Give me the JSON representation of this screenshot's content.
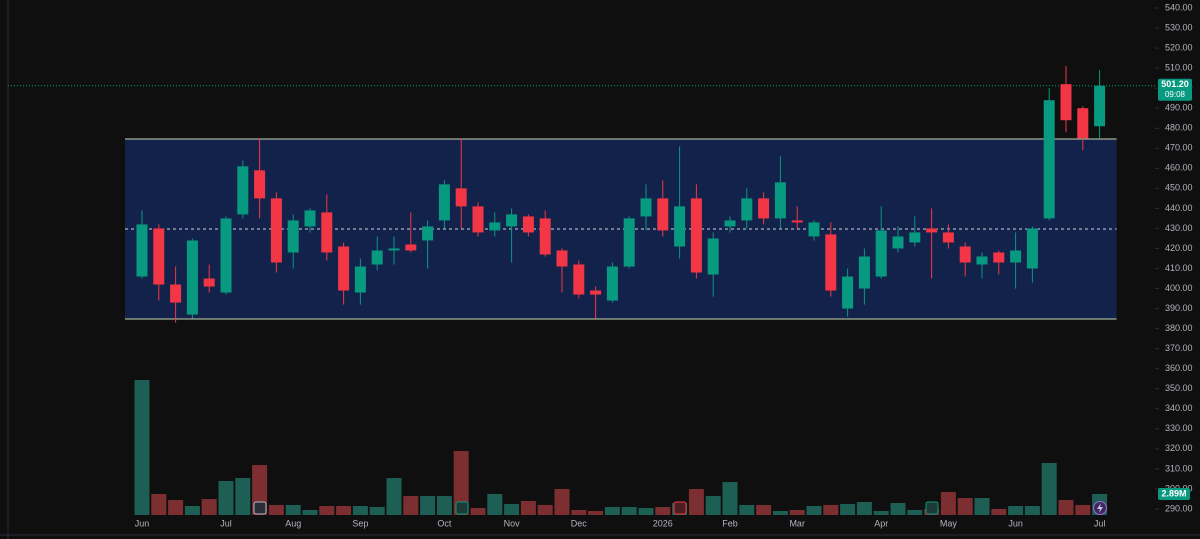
{
  "chart_data": {
    "type": "candlestick",
    "categories": [
      "Jun",
      null,
      null,
      null,
      null,
      "Jul",
      null,
      null,
      null,
      "Aug",
      null,
      null,
      null,
      "Sep",
      null,
      null,
      null,
      null,
      "Oct",
      null,
      null,
      null,
      "Nov",
      null,
      null,
      null,
      "Dec",
      null,
      null,
      null,
      null,
      "2026",
      null,
      null,
      null,
      "Feb",
      null,
      null,
      null,
      "Mar",
      null,
      null,
      null,
      null,
      "Apr",
      null,
      null,
      null,
      "May",
      null,
      null,
      null,
      "Jun",
      null,
      null,
      null,
      null,
      "Jul"
    ],
    "open": [
      406,
      430,
      402,
      387,
      405,
      398,
      437,
      459,
      445,
      418,
      431,
      438,
      421,
      398,
      412,
      419,
      422,
      424,
      434,
      450,
      441,
      429,
      431,
      436,
      435,
      419,
      412,
      399,
      394,
      411,
      436,
      445,
      421,
      445,
      407,
      431,
      434,
      445,
      435,
      434,
      426,
      427,
      390,
      400,
      406,
      420,
      423,
      430,
      428,
      421,
      412,
      418,
      413,
      410,
      435,
      502,
      490,
      481
    ],
    "high": [
      439,
      432,
      411,
      425,
      412,
      436,
      464,
      475,
      448,
      437,
      440,
      447,
      423,
      415,
      426,
      426,
      438,
      434,
      454,
      475,
      443,
      438,
      440,
      437,
      439,
      420,
      414,
      401,
      413,
      436,
      452,
      454,
      471,
      452,
      428,
      436,
      450,
      448,
      466,
      441,
      434,
      433,
      410,
      420,
      441,
      431,
      436,
      440,
      432,
      423,
      418,
      419,
      428,
      431,
      500,
      511,
      491,
      509
    ],
    "low": [
      405,
      394,
      383,
      385,
      398,
      397,
      435,
      435,
      408,
      410,
      428,
      414,
      392,
      392,
      409,
      412,
      418,
      410,
      430,
      430,
      426,
      426,
      413,
      426,
      416,
      398,
      395,
      385,
      393,
      410,
      429,
      426,
      415,
      405,
      396,
      428,
      430,
      432,
      430,
      430,
      424,
      396,
      386,
      392,
      405,
      418,
      421,
      405,
      420,
      406,
      405,
      407,
      400,
      403,
      434,
      478,
      469,
      475
    ],
    "close": [
      432,
      402,
      393,
      424,
      401,
      435,
      461,
      445,
      413,
      434,
      439,
      418,
      399,
      411,
      419,
      420,
      419,
      431,
      452,
      441,
      428,
      433,
      437,
      428,
      417,
      411,
      397,
      397,
      411,
      435,
      445,
      429,
      441,
      408,
      425,
      434,
      445,
      435,
      453,
      433,
      433,
      399,
      406,
      416,
      429,
      426,
      428,
      428,
      423,
      413,
      416,
      413,
      419,
      430,
      494,
      484,
      475,
      501.2
    ],
    "volume": [
      18.58,
      2.89,
      2.06,
      1.24,
      2.2,
      4.68,
      5.09,
      6.88,
      1.38,
      1.38,
      0.69,
      1.24,
      1.24,
      1.24,
      1.1,
      5.09,
      2.61,
      2.61,
      2.61,
      8.81,
      0.96,
      2.89,
      1.51,
      1.93,
      1.38,
      3.58,
      0.69,
      0.55,
      1.1,
      1.1,
      0.96,
      1.1,
      1.65,
      3.58,
      2.61,
      4.54,
      1.38,
      1.38,
      0.55,
      0.69,
      1.24,
      1.38,
      1.51,
      1.79,
      0.55,
      1.65,
      0.69,
      0.83,
      3.16,
      2.34,
      2.34,
      0.83,
      1.24,
      1.24,
      7.16,
      2.06,
      1.38,
      2.89
    ],
    "volume_last_label": "2.89M",
    "up_color": "#089981",
    "down_color": "#f23645",
    "volume_up_color": "#1d5e55",
    "volume_down_color": "#7c2e31",
    "last_price": {
      "value": 501.2,
      "label": "501.20"
    },
    "countdown": "09:08",
    "box": {
      "top": 474.6,
      "bottom": 384.8,
      "color": "#13224a"
    },
    "events": [
      "E",
      "E",
      "E",
      "E"
    ],
    "ylim": [
      279.5,
      544
    ],
    "yticks": [
      {
        "value": 540,
        "label": "540.00"
      },
      {
        "value": 530,
        "label": "530.00"
      },
      {
        "value": 520,
        "label": "520.00"
      },
      {
        "value": 510,
        "label": "510.00"
      },
      {
        "value": 500,
        "label": "500.00"
      },
      {
        "value": 490,
        "label": "490.00"
      },
      {
        "value": 480,
        "label": "480.00"
      },
      {
        "value": 470,
        "label": "470.00"
      },
      {
        "value": 460,
        "label": "460.00"
      },
      {
        "value": 450,
        "label": "450.00"
      },
      {
        "value": 440,
        "label": "440.00"
      },
      {
        "value": 430,
        "label": "430.00"
      },
      {
        "value": 420,
        "label": "420.00"
      },
      {
        "value": 410,
        "label": "410.00"
      },
      {
        "value": 400,
        "label": "400.00"
      },
      {
        "value": 390,
        "label": "390.00"
      },
      {
        "value": 380,
        "label": "380.00"
      },
      {
        "value": 370,
        "label": "370.00"
      },
      {
        "value": 360,
        "label": "360.00"
      },
      {
        "value": 350,
        "label": "350.00"
      },
      {
        "value": 340,
        "label": "340.00"
      },
      {
        "value": 330,
        "label": "330.00"
      },
      {
        "value": 320,
        "label": "320.00"
      },
      {
        "value": 310,
        "label": "310.00"
      },
      {
        "value": 300,
        "label": "300.00"
      },
      {
        "value": 290,
        "label": "290.00"
      }
    ]
  }
}
